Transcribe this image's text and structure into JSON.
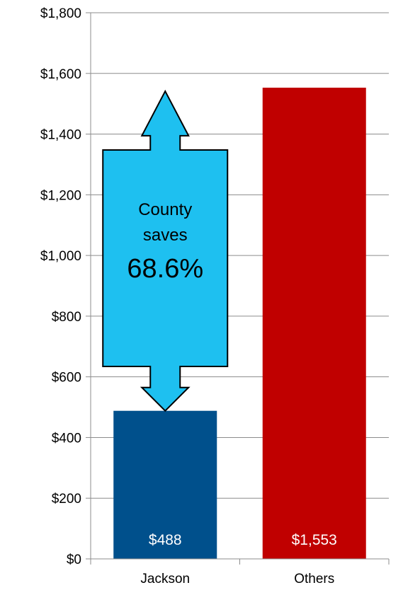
{
  "chart_data": {
    "type": "bar",
    "categories": [
      "Jackson",
      "Others"
    ],
    "values": [
      488,
      1553
    ],
    "value_labels": [
      "$488",
      "$1,553"
    ],
    "bar_colors": [
      "#00508C",
      "#C00000"
    ],
    "ylim": [
      0,
      1800
    ],
    "yticks": [
      0,
      200,
      400,
      600,
      800,
      1000,
      1200,
      1400,
      1600,
      1800
    ],
    "ytick_labels": [
      "$0",
      "$200",
      "$400",
      "$600",
      "$800",
      "$1,000",
      "$1,200",
      "$1,400",
      "$1,600",
      "$1,800"
    ],
    "grid": true,
    "annotation": {
      "line1": "County",
      "line2": "saves",
      "value": "68.6%",
      "color": "#1EC0F0",
      "from_value": 488,
      "to_value": 1553
    }
  }
}
